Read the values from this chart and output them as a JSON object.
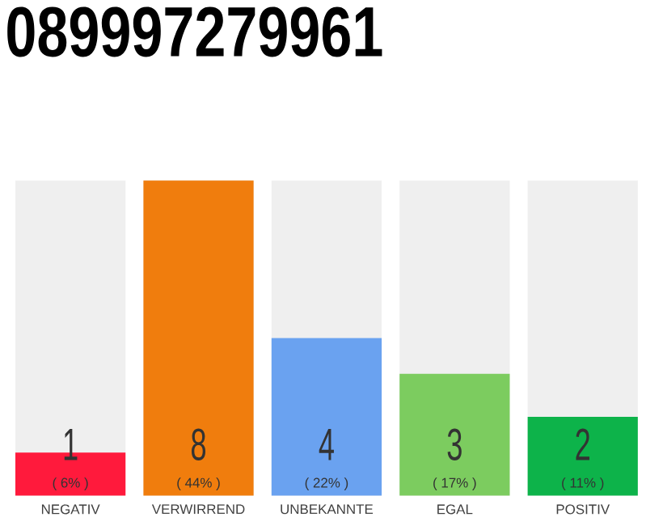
{
  "chart_data": {
    "type": "bar",
    "title": "089997279961",
    "categories": [
      "NEGATIV",
      "VERWIRREND",
      "UNBEKANNTE",
      "EGAL",
      "POSITIV"
    ],
    "values": [
      6,
      44,
      22,
      17,
      11
    ],
    "annotations": [
      "1",
      "8",
      "4",
      "3",
      "2"
    ],
    "colors": [
      "#ff1a3c",
      "#f07d0d",
      "#6aa2f0",
      "#7ccc5f",
      "#0db34a"
    ],
    "value_labels": [
      "( 6% )",
      "( 44% )",
      "( 22% )",
      "( 17% )",
      "( 11% )"
    ]
  }
}
